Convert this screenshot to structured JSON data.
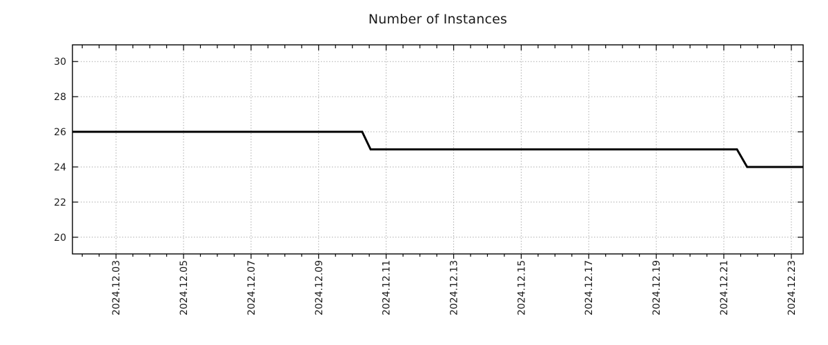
{
  "chart_data": {
    "type": "line",
    "title": "Number of Instances",
    "grid": {
      "style": "dotted",
      "color": "#ababab",
      "on": true
    },
    "frame_color": "#000000",
    "x_axis": {
      "day_zero": "2024.12.01",
      "range_days": [
        0.71,
        22.35
      ],
      "major_ticks": [
        {
          "day": 2,
          "label": "2024.12.03"
        },
        {
          "day": 4,
          "label": "2024.12.05"
        },
        {
          "day": 6,
          "label": "2024.12.07"
        },
        {
          "day": 8,
          "label": "2024.12.09"
        },
        {
          "day": 10,
          "label": "2024.12.11"
        },
        {
          "day": 12,
          "label": "2024.12.13"
        },
        {
          "day": 14,
          "label": "2024.12.15"
        },
        {
          "day": 16,
          "label": "2024.12.17"
        },
        {
          "day": 18,
          "label": "2024.12.19"
        },
        {
          "day": 20,
          "label": "2024.12.21"
        },
        {
          "day": 22,
          "label": "2024.12.23"
        }
      ],
      "minor_tick_step_days": 0.5
    },
    "y_axis": {
      "range": [
        19.05,
        30.95
      ],
      "ticks": [
        20,
        22,
        24,
        26,
        28,
        30
      ]
    },
    "series": [
      {
        "name": "Number of Instances",
        "color": "#000000",
        "line_width": 3,
        "points_day_value": [
          [
            0.71,
            26
          ],
          [
            9.29,
            26
          ],
          [
            9.54,
            25
          ],
          [
            20.39,
            25
          ],
          [
            20.69,
            24
          ],
          [
            22.35,
            24
          ]
        ],
        "levels_readable": [
          {
            "value": 26,
            "until": "2024.12.10 ~07:00"
          },
          {
            "value": 25,
            "from": "2024.12.10 ~13:00",
            "until": "2024.12.21 ~09:00"
          },
          {
            "value": 24,
            "from": "2024.12.21 ~17:00",
            "until": "end of chart (2024.12.23+)"
          }
        ]
      }
    ]
  }
}
